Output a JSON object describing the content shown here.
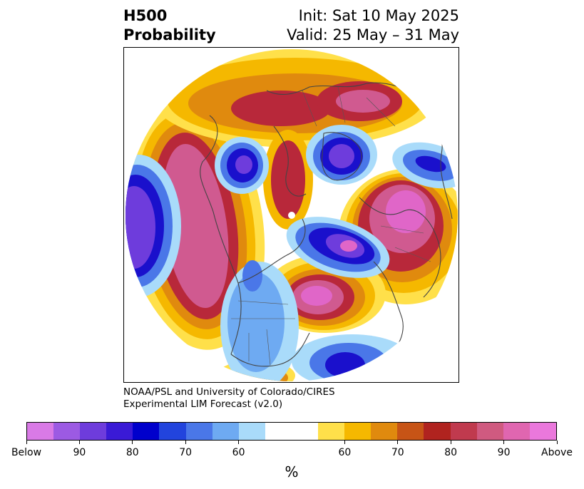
{
  "title": {
    "field": "H500",
    "product": "Probability",
    "init": "Init: Sat 10 May 2025",
    "valid": "Valid: 25 May – 31 May"
  },
  "credit": {
    "line1": "NOAA/PSL and University of Colorado/CIRES",
    "line2": "Experimental LIM Forecast (v2.0)"
  },
  "colorbar": {
    "colors": [
      "#d97ae6",
      "#9c5ae3",
      "#6e3cdc",
      "#3a1ad6",
      "#0000cc",
      "#2244dd",
      "#4a77e8",
      "#6eaaf2",
      "#a9dbfa",
      "#ffffff",
      "#ffffff",
      "#ffe04a",
      "#f5b800",
      "#e08a0e",
      "#c75416",
      "#b0231f",
      "#c03a4e",
      "#d05a80",
      "#e066b0",
      "#ea78dc"
    ],
    "labels": [
      "Below",
      "90",
      "80",
      "70",
      "60",
      "60",
      "70",
      "80",
      "90",
      "Above"
    ],
    "unit": "%"
  },
  "map": {
    "projection": "north-polar-stereographic",
    "palette": {
      "above_strong": "#e066c8",
      "above_high": "#d05a90",
      "above_mid": "#b8283a",
      "above_low": "#e08a0e",
      "above_weak": "#f5b800",
      "above_faint": "#ffe04a",
      "below_strong": "#6e3cdc",
      "below_high": "#1a10cc",
      "below_mid": "#2244dd",
      "below_low": "#4a77e8",
      "below_weak": "#6eaaf2",
      "below_faint": "#a9dbfa"
    }
  }
}
